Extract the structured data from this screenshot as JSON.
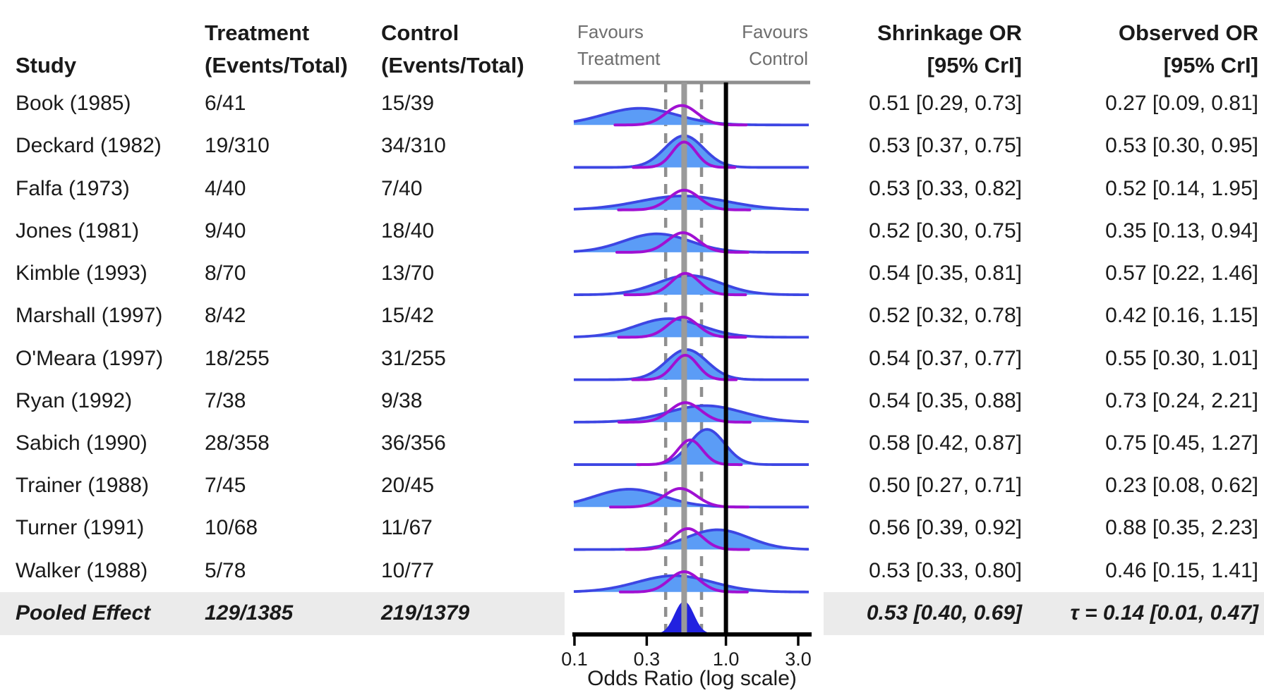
{
  "table": {
    "headers": {
      "study": "Study",
      "treatment_line1": "Treatment",
      "treatment_line2": "(Events/Total)",
      "control_line1": "Control",
      "control_line2": "(Events/Total)",
      "shrinkage_line1": "Shrinkage OR",
      "shrinkage_line2": "[95% CrI]",
      "observed_line1": "Observed OR",
      "observed_line2": "[95% CrI]"
    },
    "rows": [
      {
        "study": "Book (1985)",
        "treatment": "6/41",
        "control": "15/39",
        "shrinkage": "0.51 [0.29, 0.73]",
        "observed": "0.27 [0.09, 0.81]"
      },
      {
        "study": "Deckard (1982)",
        "treatment": "19/310",
        "control": "34/310",
        "shrinkage": "0.53 [0.37, 0.75]",
        "observed": "0.53 [0.30, 0.95]"
      },
      {
        "study": "Falfa (1973)",
        "treatment": "4/40",
        "control": "7/40",
        "shrinkage": "0.53 [0.33, 0.82]",
        "observed": "0.52 [0.14, 1.95]"
      },
      {
        "study": "Jones (1981)",
        "treatment": "9/40",
        "control": "18/40",
        "shrinkage": "0.52 [0.30, 0.75]",
        "observed": "0.35 [0.13, 0.94]"
      },
      {
        "study": "Kimble (1993)",
        "treatment": "8/70",
        "control": "13/70",
        "shrinkage": "0.54 [0.35, 0.81]",
        "observed": "0.57 [0.22, 1.46]"
      },
      {
        "study": "Marshall (1997)",
        "treatment": "8/42",
        "control": "15/42",
        "shrinkage": "0.52 [0.32, 0.78]",
        "observed": "0.42 [0.16, 1.15]"
      },
      {
        "study": "O'Meara (1997)",
        "treatment": "18/255",
        "control": "31/255",
        "shrinkage": "0.54 [0.37, 0.77]",
        "observed": "0.55 [0.30, 1.01]"
      },
      {
        "study": "Ryan (1992)",
        "treatment": "7/38",
        "control": "9/38",
        "shrinkage": "0.54 [0.35, 0.88]",
        "observed": "0.73 [0.24, 2.21]"
      },
      {
        "study": "Sabich (1990)",
        "treatment": "28/358",
        "control": "36/356",
        "shrinkage": "0.58 [0.42, 0.87]",
        "observed": "0.75 [0.45, 1.27]"
      },
      {
        "study": "Trainer (1988)",
        "treatment": "7/45",
        "control": "20/45",
        "shrinkage": "0.50 [0.27, 0.71]",
        "observed": "0.23 [0.08, 0.62]"
      },
      {
        "study": "Turner (1991)",
        "treatment": "10/68",
        "control": "11/67",
        "shrinkage": "0.56 [0.39, 0.92]",
        "observed": "0.88 [0.35, 2.23]"
      },
      {
        "study": "Walker (1988)",
        "treatment": "5/78",
        "control": "10/77",
        "shrinkage": "0.53 [0.33, 0.80]",
        "observed": "0.46 [0.15, 1.41]"
      }
    ],
    "pooled": {
      "study": "Pooled Effect",
      "treatment": "129/1385",
      "control": "219/1379",
      "shrinkage": "0.53 [0.40, 0.69]",
      "observed": "τ = 0.14 [0.01, 0.47]"
    }
  },
  "chart_data": {
    "type": "forest-ridgeline",
    "x_scale": "log",
    "xlabel": "Odds Ratio (log scale)",
    "x_ticks": [
      0.1,
      0.3,
      1.0,
      3.0
    ],
    "x_tick_labels": [
      "0.1",
      "0.3",
      "1.0",
      "3.0"
    ],
    "x_range": [
      0.1,
      3.56
    ],
    "favours_left": [
      "Favours",
      "Treatment"
    ],
    "favours_right": [
      "Favours",
      "Control"
    ],
    "no_effect_line": 1.0,
    "pooled": {
      "or": 0.53,
      "lo": 0.4,
      "hi": 0.69,
      "tau": 0.14,
      "tau_lo": 0.01,
      "tau_hi": 0.47
    },
    "studies": [
      {
        "name": "Book (1985)",
        "shrinkage": {
          "or": 0.51,
          "lo": 0.29,
          "hi": 0.73
        },
        "observed": {
          "or": 0.27,
          "lo": 0.09,
          "hi": 0.81
        }
      },
      {
        "name": "Deckard (1982)",
        "shrinkage": {
          "or": 0.53,
          "lo": 0.37,
          "hi": 0.75
        },
        "observed": {
          "or": 0.53,
          "lo": 0.3,
          "hi": 0.95
        }
      },
      {
        "name": "Falfa (1973)",
        "shrinkage": {
          "or": 0.53,
          "lo": 0.33,
          "hi": 0.82
        },
        "observed": {
          "or": 0.52,
          "lo": 0.14,
          "hi": 1.95
        }
      },
      {
        "name": "Jones (1981)",
        "shrinkage": {
          "or": 0.52,
          "lo": 0.3,
          "hi": 0.75
        },
        "observed": {
          "or": 0.35,
          "lo": 0.13,
          "hi": 0.94
        }
      },
      {
        "name": "Kimble (1993)",
        "shrinkage": {
          "or": 0.54,
          "lo": 0.35,
          "hi": 0.81
        },
        "observed": {
          "or": 0.57,
          "lo": 0.22,
          "hi": 1.46
        }
      },
      {
        "name": "Marshall (1997)",
        "shrinkage": {
          "or": 0.52,
          "lo": 0.32,
          "hi": 0.78
        },
        "observed": {
          "or": 0.42,
          "lo": 0.16,
          "hi": 1.15
        }
      },
      {
        "name": "O'Meara (1997)",
        "shrinkage": {
          "or": 0.54,
          "lo": 0.37,
          "hi": 0.77
        },
        "observed": {
          "or": 0.55,
          "lo": 0.3,
          "hi": 1.01
        }
      },
      {
        "name": "Ryan (1992)",
        "shrinkage": {
          "or": 0.54,
          "lo": 0.35,
          "hi": 0.88
        },
        "observed": {
          "or": 0.73,
          "lo": 0.24,
          "hi": 2.21
        }
      },
      {
        "name": "Sabich (1990)",
        "shrinkage": {
          "or": 0.58,
          "lo": 0.42,
          "hi": 0.87
        },
        "observed": {
          "or": 0.75,
          "lo": 0.45,
          "hi": 1.27
        }
      },
      {
        "name": "Trainer (1988)",
        "shrinkage": {
          "or": 0.5,
          "lo": 0.27,
          "hi": 0.71
        },
        "observed": {
          "or": 0.23,
          "lo": 0.08,
          "hi": 0.62
        }
      },
      {
        "name": "Turner (1991)",
        "shrinkage": {
          "or": 0.56,
          "lo": 0.39,
          "hi": 0.92
        },
        "observed": {
          "or": 0.88,
          "lo": 0.35,
          "hi": 2.23
        }
      },
      {
        "name": "Walker (1988)",
        "shrinkage": {
          "or": 0.53,
          "lo": 0.33,
          "hi": 0.8
        },
        "observed": {
          "or": 0.46,
          "lo": 0.15,
          "hi": 1.41
        }
      }
    ],
    "colors": {
      "observed_fill": "#5B9CF6",
      "observed_stroke": "#3D46E3",
      "shrinkage_stroke": "#A010D2",
      "pooled_fill": "#2222E0",
      "no_effect_line": "#000000",
      "pooled_line": "#9A9A9A",
      "interval_dashed_line": "#8F8F8F",
      "header_rule": "#8F8F8F",
      "pooled_row_band": "#EBEBEB",
      "favours_text": "#6E6E6E",
      "text": "#1A1A1A"
    },
    "legend_position": "none",
    "grid": false
  }
}
